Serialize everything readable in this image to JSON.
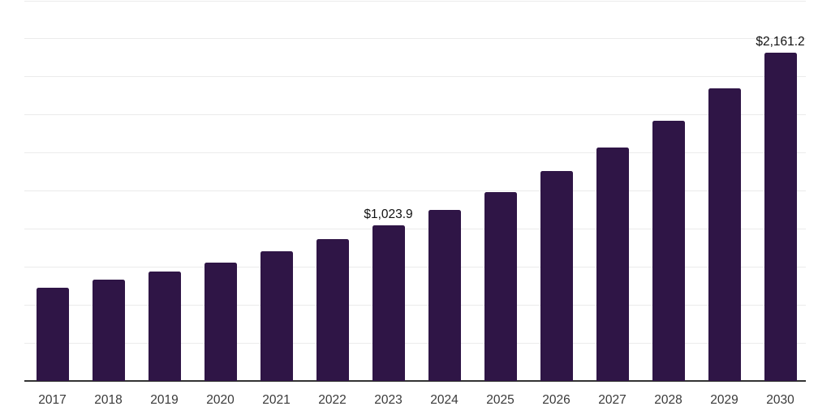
{
  "chart_data": {
    "type": "bar",
    "title": "",
    "xlabel": "",
    "ylabel": "",
    "categories": [
      "2017",
      "2018",
      "2019",
      "2020",
      "2021",
      "2022",
      "2023",
      "2024",
      "2025",
      "2026",
      "2027",
      "2028",
      "2029",
      "2030"
    ],
    "values": [
      615,
      665,
      720,
      780,
      853,
      933,
      1023.9,
      1123,
      1240,
      1380,
      1535,
      1710,
      1925,
      2161.2
    ],
    "value_labels": [
      {
        "category": "2023",
        "text": "$1,023.9"
      },
      {
        "category": "2030",
        "text": "$2,161.2"
      }
    ],
    "ylim": [
      0,
      2500
    ],
    "grid_step": 250,
    "grid": "on",
    "legend_position": "none",
    "colors": {
      "bar": "#2F1546",
      "grid_line": "#ebebeb",
      "axis_line": "#333333",
      "tick_label": "#3a3a3a",
      "value_label": "#111111",
      "background": "#ffffff"
    }
  }
}
